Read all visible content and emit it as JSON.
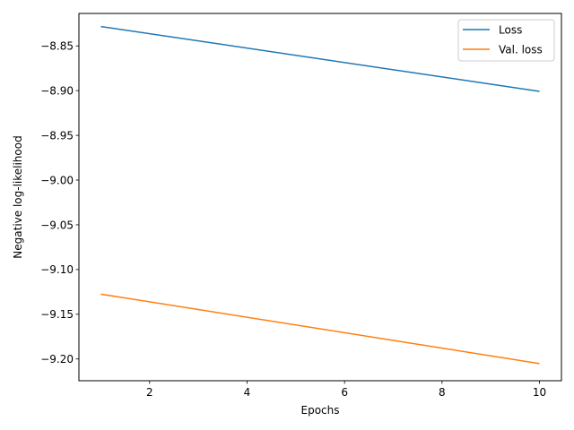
{
  "chart_data": {
    "type": "line",
    "title": "",
    "xlabel": "Epochs",
    "ylabel": "Negative log-likelihood",
    "xlim": [
      0.55,
      10.45
    ],
    "ylim": [
      -9.2243,
      -8.8137
    ],
    "xticks": [
      2,
      4,
      6,
      8,
      10
    ],
    "xtick_labels": [
      "2",
      "4",
      "6",
      "8",
      "10"
    ],
    "yticks": [
      -8.85,
      -8.9,
      -8.95,
      -9.0,
      -9.05,
      -9.1,
      -9.15,
      -9.2
    ],
    "ytick_labels": [
      "−8.85",
      "−8.90",
      "−8.95",
      "−9.00",
      "−9.05",
      "−9.10",
      "−9.15",
      "−9.20"
    ],
    "grid": false,
    "legend_position": "top-right",
    "series": [
      {
        "name": "Loss",
        "color": "#1f77b4",
        "x": [
          1,
          10
        ],
        "y": [
          -8.8283,
          -8.9008
        ]
      },
      {
        "name": "Val. loss",
        "color": "#ff7f0e",
        "x": [
          1,
          10
        ],
        "y": [
          -9.1275,
          -9.2051
        ]
      }
    ]
  }
}
